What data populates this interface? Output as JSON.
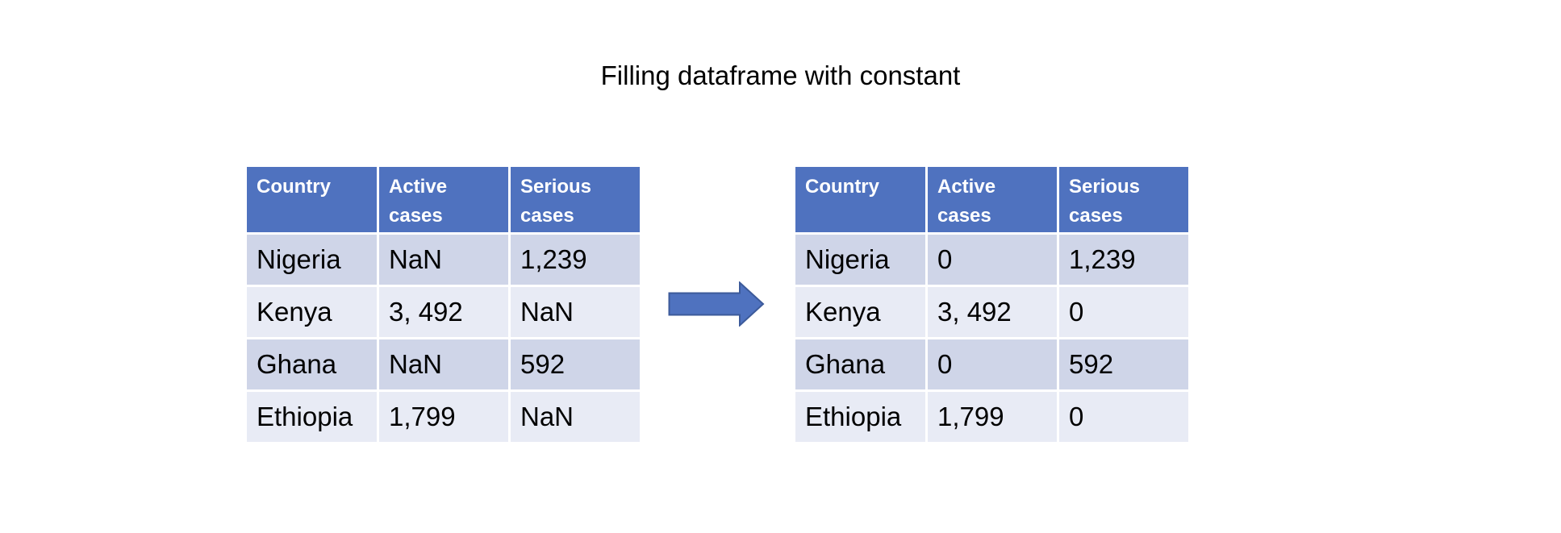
{
  "title": "Filling dataframe with constant",
  "colors": {
    "header_bg": "#4f72bf",
    "row_dark": "#cfd5e8",
    "row_light": "#e8ebf5",
    "arrow": "#4f72bf"
  },
  "icons": {
    "arrow": "right-arrow-icon"
  },
  "before": {
    "headers": [
      "Country",
      "Active cases",
      "Serious cases"
    ],
    "rows": [
      [
        "Nigeria",
        "NaN",
        "1,239"
      ],
      [
        "Kenya",
        "3, 492",
        "NaN"
      ],
      [
        "Ghana",
        "NaN",
        "592"
      ],
      [
        "Ethiopia",
        "1,799",
        "NaN"
      ]
    ]
  },
  "after": {
    "headers": [
      "Country",
      "Active cases",
      "Serious cases"
    ],
    "rows": [
      [
        "Nigeria",
        "0",
        "1,239"
      ],
      [
        "Kenya",
        "3, 492",
        "0"
      ],
      [
        "Ghana",
        "0",
        "592"
      ],
      [
        "Ethiopia",
        "1,799",
        "0"
      ]
    ]
  }
}
